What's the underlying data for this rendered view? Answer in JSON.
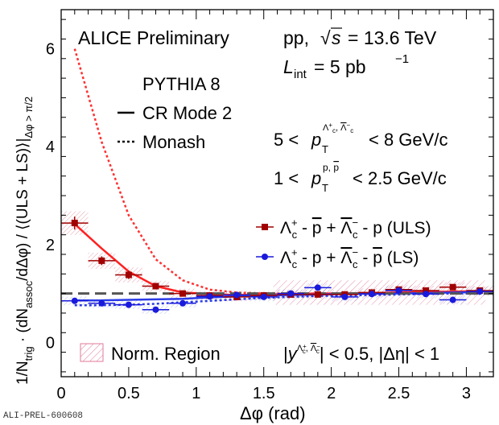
{
  "chart_data": {
    "type": "scatter",
    "xlabel": "Δφ (rad)",
    "ylabel": "1/N_trig · (dN_assoc/dΔφ) / ⟨(ULS + LS)⟩|Δφ > π/2",
    "xlim": [
      0,
      3.2
    ],
    "ylim": [
      -0.7,
      6.8
    ],
    "xticks": [
      "0",
      "0.5",
      "1",
      "1.5",
      "2",
      "2.5",
      "3"
    ],
    "yticks": [
      "0",
      "2",
      "4",
      "6"
    ],
    "legend_position": "right-middle",
    "header": {
      "experiment": "ALICE Preliminary",
      "system": "pp,",
      "energy_label": "s",
      "energy_value": "= 13.6 TeV",
      "lumi_symbol": "L",
      "lumi_sub": "int",
      "lumi_value": "= 5 pb",
      "lumi_exp": "−1"
    },
    "model_legend": {
      "title": "PYTHIA 8",
      "solid": "CR Mode 2",
      "dotted": "Monash"
    },
    "cuts": {
      "lambda_pt": {
        "low": "5 <",
        "var": "p",
        "sub": "T",
        "sup": "Λc+, Λc−",
        "high": "< 8 GeV/c"
      },
      "proton_pt": {
        "low": "1 <",
        "var": "p",
        "sub": "T",
        "sup": "p, p",
        "high": "< 2.5 GeV/c"
      }
    },
    "series": [
      {
        "name": "Λc+ - p  +  Λc− - p (ULS)",
        "color": "#a00000",
        "marker": "square",
        "x": [
          0.1,
          0.3,
          0.5,
          0.7,
          0.9,
          1.1,
          1.3,
          1.5,
          1.7,
          1.9,
          2.1,
          2.3,
          2.5,
          2.7,
          2.9,
          3.1
        ],
        "y": [
          2.44,
          1.67,
          1.38,
          1.15,
          1.0,
          0.96,
          0.93,
          0.96,
          0.98,
          0.98,
          0.98,
          1.02,
          1.08,
          1.06,
          1.13,
          1.06
        ],
        "err": [
          0.22,
          0.15,
          0.14,
          0.1,
          0.09,
          0.08,
          0.08,
          0.08,
          0.08,
          0.08,
          0.08,
          0.08,
          0.09,
          0.09,
          0.09,
          0.09
        ]
      },
      {
        "name": "Λc+ - p  +  Λc− - p (LS)",
        "color": "#1a1adc",
        "marker": "circle",
        "x": [
          0.1,
          0.3,
          0.5,
          0.7,
          0.9,
          1.1,
          1.3,
          1.5,
          1.7,
          1.9,
          2.1,
          2.3,
          2.5,
          2.7,
          2.9,
          3.1
        ],
        "y": [
          0.85,
          0.8,
          0.77,
          0.67,
          0.8,
          0.94,
          0.97,
          0.93,
          1.0,
          1.12,
          0.93,
          0.99,
          1.06,
          0.99,
          0.87,
          1.04
        ],
        "err": [
          0.08,
          0.08,
          0.08,
          0.08,
          0.08,
          0.08,
          0.08,
          0.08,
          0.08,
          0.08,
          0.08,
          0.08,
          0.08,
          0.08,
          0.08,
          0.08
        ]
      }
    ],
    "models": {
      "uls_cr2": {
        "x": [
          0.1,
          0.3,
          0.5,
          0.7,
          0.9,
          1.1,
          1.3,
          1.5,
          1.7,
          1.9,
          2.1,
          2.3,
          2.5,
          2.7,
          2.9,
          3.1
        ],
        "y": [
          2.42,
          1.92,
          1.45,
          1.15,
          1.02,
          0.99,
          0.97,
          0.98,
          0.99,
          1.0,
          1.0,
          1.01,
          1.02,
          1.03,
          1.04,
          1.05
        ]
      },
      "uls_monash": {
        "x": [
          0.1,
          0.3,
          0.5,
          0.7,
          0.9,
          1.1,
          1.3,
          1.5,
          1.7,
          1.9,
          2.1,
          2.3,
          2.5,
          2.7,
          2.9,
          3.1
        ],
        "y": [
          6.0,
          4.1,
          2.6,
          1.7,
          1.27,
          1.08,
          1.02,
          1.0,
          1.0,
          1.0,
          1.0,
          1.01,
          1.02,
          1.02,
          1.03,
          1.04
        ]
      },
      "ls_cr2": {
        "x": [
          0.1,
          0.3,
          0.5,
          0.7,
          0.9,
          1.1,
          1.3,
          1.5,
          1.7,
          1.9,
          2.1,
          2.3,
          2.5,
          2.7,
          2.9,
          3.1
        ],
        "y": [
          0.86,
          0.86,
          0.87,
          0.88,
          0.89,
          0.92,
          0.94,
          0.96,
          0.97,
          0.98,
          0.99,
          1.0,
          1.0,
          1.01,
          1.02,
          1.03
        ]
      },
      "ls_monash": {
        "x": [
          0.1,
          0.3,
          0.5,
          0.7,
          0.9,
          1.1,
          1.3,
          1.5,
          1.7,
          1.9,
          2.1,
          2.3,
          2.5,
          2.7,
          2.9,
          3.1
        ],
        "y": [
          0.76,
          0.76,
          0.77,
          0.79,
          0.82,
          0.85,
          0.88,
          0.91,
          0.93,
          0.95,
          0.96,
          0.97,
          0.98,
          0.99,
          1.0,
          1.0
        ]
      }
    },
    "reference_line": 1.0,
    "norm_region": {
      "x_range": [
        1.5708,
        3.1416
      ],
      "y_range": [
        0.77,
        1.27
      ],
      "label": "Norm. Region"
    },
    "selection": {
      "text_y": "|y",
      "sup": "Λc+, Λc−",
      "tail": "| < 0.5, |Δη| < 1"
    },
    "legend_uls": {
      "a": "Λ",
      "a_sub": "c",
      "a_sup": "+",
      "b": "- p  +  Λ",
      "b_sub": "c",
      "b_sup": "−",
      "tail": "- p (ULS)"
    },
    "legend_ls": {
      "a": "Λ",
      "a_sub": "c",
      "a_sup": "+",
      "b": "- p  +  Λ",
      "b_sub": "c",
      "b_sup": "−",
      "tail": "- p (LS)"
    }
  },
  "footer_id": "ALI-PREL-600608"
}
